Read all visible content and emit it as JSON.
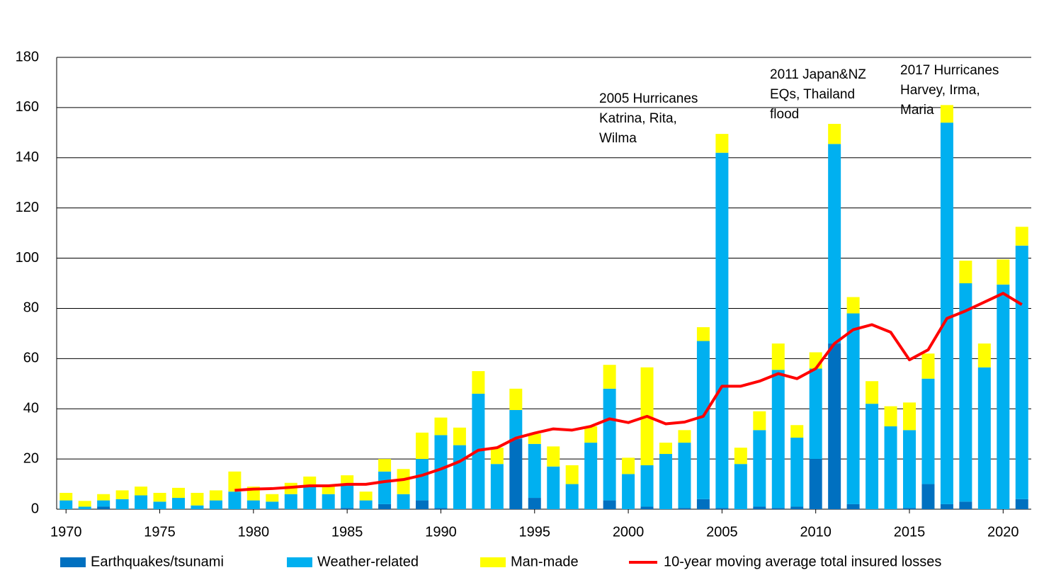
{
  "chart_data": {
    "type": "stacked_bar_line",
    "x": [
      1970,
      1971,
      1972,
      1973,
      1974,
      1975,
      1976,
      1977,
      1978,
      1979,
      1980,
      1981,
      1982,
      1983,
      1984,
      1985,
      1986,
      1987,
      1988,
      1989,
      1990,
      1991,
      1992,
      1993,
      1994,
      1995,
      1996,
      1997,
      1998,
      1999,
      2000,
      2001,
      2002,
      2003,
      2004,
      2005,
      2006,
      2007,
      2008,
      2009,
      2010,
      2011,
      2012,
      2013,
      2014,
      2015,
      2016,
      2017,
      2018,
      2019,
      2020,
      2021
    ],
    "series": [
      {
        "name": "Earthquakes/tsunami",
        "color": "#0070c0",
        "kind": "bar",
        "values": [
          0,
          0,
          1,
          0,
          0,
          0,
          0,
          0,
          0,
          0,
          0,
          0,
          0,
          0,
          0,
          0.5,
          0,
          2,
          0,
          3.5,
          0.5,
          0,
          0,
          0,
          28,
          4.5,
          0,
          0,
          0,
          3.5,
          0,
          1,
          0,
          0.5,
          4,
          0.5,
          0,
          1,
          0.5,
          1,
          20,
          66,
          2,
          0,
          0,
          0.5,
          10,
          2,
          3,
          0,
          0,
          4
        ]
      },
      {
        "name": "Weather-related",
        "color": "#00b0f0",
        "kind": "bar",
        "values": [
          3.5,
          1,
          2.5,
          4,
          5.5,
          3,
          4.5,
          1.5,
          3.5,
          7,
          3.5,
          3,
          6,
          9,
          6,
          9.5,
          3.5,
          13,
          6,
          16.5,
          29,
          25.5,
          46,
          18,
          11.5,
          21.5,
          17,
          10,
          26.5,
          44.5,
          14,
          16.5,
          22,
          26,
          63,
          141.5,
          18,
          30.5,
          55,
          27.5,
          36,
          79.5,
          76,
          42,
          33,
          31,
          42,
          152,
          87,
          56.5,
          89.5,
          101
        ]
      },
      {
        "name": "Man-made",
        "color": "#ffff00",
        "kind": "bar",
        "values": [
          3,
          2.3,
          2.5,
          3.5,
          3.5,
          3.5,
          4,
          5,
          4,
          8,
          5.5,
          3,
          4.5,
          4,
          3.5,
          3.5,
          3.5,
          5,
          10,
          10.5,
          7,
          7,
          9,
          6.5,
          8.5,
          4,
          8,
          7.5,
          6.5,
          9.5,
          6.5,
          39,
          4.5,
          5,
          5.5,
          7.5,
          6.5,
          7.5,
          10.5,
          5,
          6.5,
          8,
          6.5,
          9,
          8,
          11,
          10,
          7,
          9,
          9.5,
          10,
          7.5
        ]
      },
      {
        "name": "10-year moving average total insured losses",
        "color": "#ff0000",
        "kind": "line",
        "values": [
          null,
          null,
          null,
          null,
          null,
          null,
          null,
          null,
          null,
          7.5,
          8,
          8.2,
          8.7,
          9.3,
          9.3,
          9.9,
          9.9,
          11,
          11.8,
          13.5,
          16,
          19,
          23.5,
          24.5,
          28.3,
          30.3,
          32,
          31.5,
          33,
          36,
          34.5,
          37,
          34,
          34.7,
          37,
          49,
          49,
          51,
          54,
          52,
          56,
          66,
          71.5,
          73.5,
          70.5,
          59.5,
          63.5,
          76,
          79,
          82.5,
          86,
          81.5
        ]
      }
    ],
    "xlim": [
      1969.5,
      2021.5
    ],
    "xticks": [
      1970,
      1975,
      1980,
      1985,
      1990,
      1995,
      2000,
      2005,
      2010,
      2015,
      2020
    ],
    "ylim": [
      0,
      180
    ],
    "yticks": [
      0,
      20,
      40,
      60,
      80,
      100,
      120,
      140,
      160,
      180
    ],
    "grid": true,
    "legend": "bottom",
    "annotations": [
      {
        "lines": [
          "2005 Hurricanes",
          "Katrina, Rita,",
          "Wilma"
        ]
      },
      {
        "lines": [
          "2011 Japan&NZ",
          "EQs, Thailand",
          "flood"
        ]
      },
      {
        "lines": [
          "2017 Hurricanes",
          "Harvey, Irma,",
          "Maria"
        ]
      }
    ]
  }
}
